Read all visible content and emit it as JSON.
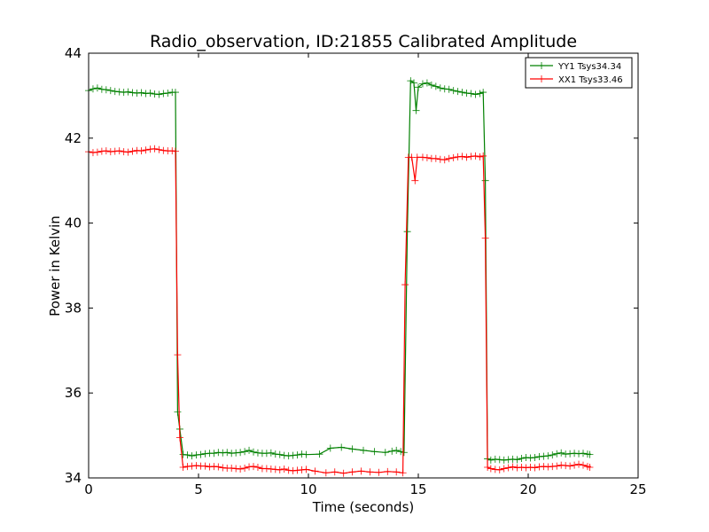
{
  "chart_data": {
    "type": "line",
    "title": "Radio_observation, ID:21855 Calibrated Amplitude",
    "xlabel": "Time (seconds)",
    "ylabel": "Power in Kelvin",
    "xlim": [
      0,
      25
    ],
    "ylim": [
      34,
      44
    ],
    "xticks": [
      0,
      5,
      10,
      15,
      20,
      25
    ],
    "yticks": [
      34,
      36,
      38,
      40,
      42,
      44
    ],
    "grid": false,
    "legend_position": "top-right",
    "series": [
      {
        "name": "YY1 Tsys34.34",
        "color": "#008000",
        "marker": "plus",
        "points": [
          [
            0.0,
            43.12
          ],
          [
            0.2,
            43.16
          ],
          [
            0.4,
            43.18
          ],
          [
            0.6,
            43.15
          ],
          [
            0.8,
            43.14
          ],
          [
            1.0,
            43.12
          ],
          [
            1.2,
            43.1
          ],
          [
            1.4,
            43.09
          ],
          [
            1.6,
            43.08
          ],
          [
            1.8,
            43.09
          ],
          [
            2.0,
            43.07
          ],
          [
            2.2,
            43.06
          ],
          [
            2.4,
            43.07
          ],
          [
            2.6,
            43.05
          ],
          [
            2.8,
            43.06
          ],
          [
            3.0,
            43.04
          ],
          [
            3.2,
            43.03
          ],
          [
            3.4,
            43.05
          ],
          [
            3.6,
            43.06
          ],
          [
            3.8,
            43.08
          ],
          [
            3.95,
            43.08
          ],
          [
            4.05,
            35.55
          ],
          [
            4.15,
            35.15
          ],
          [
            4.3,
            34.55
          ],
          [
            4.5,
            34.54
          ],
          [
            4.7,
            34.52
          ],
          [
            4.9,
            34.54
          ],
          [
            5.1,
            34.55
          ],
          [
            5.3,
            34.57
          ],
          [
            5.5,
            34.58
          ],
          [
            5.7,
            34.58
          ],
          [
            5.9,
            34.6
          ],
          [
            6.1,
            34.59
          ],
          [
            6.3,
            34.6
          ],
          [
            6.5,
            34.58
          ],
          [
            6.7,
            34.59
          ],
          [
            6.9,
            34.6
          ],
          [
            7.1,
            34.62
          ],
          [
            7.3,
            34.65
          ],
          [
            7.5,
            34.61
          ],
          [
            7.7,
            34.59
          ],
          [
            7.9,
            34.58
          ],
          [
            8.1,
            34.58
          ],
          [
            8.3,
            34.59
          ],
          [
            8.5,
            34.56
          ],
          [
            8.7,
            34.55
          ],
          [
            8.9,
            34.53
          ],
          [
            9.1,
            34.52
          ],
          [
            9.3,
            34.53
          ],
          [
            9.5,
            34.54
          ],
          [
            9.7,
            34.56
          ],
          [
            9.9,
            34.55
          ],
          [
            10.5,
            34.56
          ],
          [
            11.0,
            34.7
          ],
          [
            11.5,
            34.72
          ],
          [
            12.0,
            34.68
          ],
          [
            12.5,
            34.65
          ],
          [
            13.0,
            34.62
          ],
          [
            13.5,
            34.6
          ],
          [
            13.8,
            34.63
          ],
          [
            14.0,
            34.65
          ],
          [
            14.2,
            34.62
          ],
          [
            14.35,
            34.6
          ],
          [
            14.5,
            39.8
          ],
          [
            14.65,
            43.35
          ],
          [
            14.8,
            43.3
          ],
          [
            14.9,
            42.65
          ],
          [
            15.0,
            43.2
          ],
          [
            15.2,
            43.28
          ],
          [
            15.4,
            43.3
          ],
          [
            15.6,
            43.25
          ],
          [
            15.8,
            43.22
          ],
          [
            16.0,
            43.18
          ],
          [
            16.2,
            43.16
          ],
          [
            16.4,
            43.15
          ],
          [
            16.6,
            43.12
          ],
          [
            16.8,
            43.1
          ],
          [
            17.0,
            43.08
          ],
          [
            17.2,
            43.06
          ],
          [
            17.4,
            43.05
          ],
          [
            17.6,
            43.03
          ],
          [
            17.8,
            43.05
          ],
          [
            17.95,
            43.08
          ],
          [
            18.05,
            41.0
          ],
          [
            18.15,
            34.45
          ],
          [
            18.3,
            34.42
          ],
          [
            18.5,
            34.44
          ],
          [
            18.7,
            34.43
          ],
          [
            18.9,
            34.42
          ],
          [
            19.1,
            34.43
          ],
          [
            19.3,
            34.44
          ],
          [
            19.5,
            34.43
          ],
          [
            19.7,
            34.46
          ],
          [
            19.9,
            34.48
          ],
          [
            20.1,
            34.47
          ],
          [
            20.3,
            34.48
          ],
          [
            20.5,
            34.5
          ],
          [
            20.7,
            34.51
          ],
          [
            20.9,
            34.52
          ],
          [
            21.1,
            34.54
          ],
          [
            21.3,
            34.57
          ],
          [
            21.5,
            34.59
          ],
          [
            21.7,
            34.56
          ],
          [
            21.9,
            34.57
          ],
          [
            22.1,
            34.58
          ],
          [
            22.3,
            34.57
          ],
          [
            22.5,
            34.58
          ],
          [
            22.7,
            34.56
          ],
          [
            22.8,
            34.55
          ]
        ]
      },
      {
        "name": "XX1 Tsys33.46",
        "color": "#ff0000",
        "marker": "plus",
        "points": [
          [
            0.0,
            41.68
          ],
          [
            0.2,
            41.66
          ],
          [
            0.4,
            41.67
          ],
          [
            0.6,
            41.69
          ],
          [
            0.8,
            41.7
          ],
          [
            1.0,
            41.68
          ],
          [
            1.2,
            41.69
          ],
          [
            1.4,
            41.7
          ],
          [
            1.6,
            41.68
          ],
          [
            1.8,
            41.67
          ],
          [
            2.0,
            41.69
          ],
          [
            2.2,
            41.71
          ],
          [
            2.4,
            41.7
          ],
          [
            2.6,
            41.72
          ],
          [
            2.8,
            41.74
          ],
          [
            3.0,
            41.75
          ],
          [
            3.2,
            41.73
          ],
          [
            3.4,
            41.71
          ],
          [
            3.6,
            41.7
          ],
          [
            3.8,
            41.7
          ],
          [
            3.95,
            41.69
          ],
          [
            4.05,
            36.9
          ],
          [
            4.15,
            34.95
          ],
          [
            4.3,
            34.25
          ],
          [
            4.5,
            34.27
          ],
          [
            4.7,
            34.28
          ],
          [
            4.9,
            34.29
          ],
          [
            5.1,
            34.28
          ],
          [
            5.3,
            34.28
          ],
          [
            5.5,
            34.26
          ],
          [
            5.7,
            34.27
          ],
          [
            5.9,
            34.26
          ],
          [
            6.1,
            34.24
          ],
          [
            6.3,
            34.23
          ],
          [
            6.5,
            34.23
          ],
          [
            6.7,
            34.22
          ],
          [
            6.9,
            34.21
          ],
          [
            7.1,
            34.23
          ],
          [
            7.3,
            34.26
          ],
          [
            7.5,
            34.27
          ],
          [
            7.7,
            34.25
          ],
          [
            7.9,
            34.22
          ],
          [
            8.1,
            34.22
          ],
          [
            8.3,
            34.21
          ],
          [
            8.5,
            34.2
          ],
          [
            8.7,
            34.19
          ],
          [
            8.9,
            34.21
          ],
          [
            9.1,
            34.18
          ],
          [
            9.3,
            34.17
          ],
          [
            9.5,
            34.18
          ],
          [
            9.7,
            34.19
          ],
          [
            9.9,
            34.2
          ],
          [
            10.3,
            34.16
          ],
          [
            10.8,
            34.12
          ],
          [
            11.2,
            34.14
          ],
          [
            11.6,
            34.11
          ],
          [
            12.0,
            34.14
          ],
          [
            12.4,
            34.16
          ],
          [
            12.8,
            34.14
          ],
          [
            13.2,
            34.13
          ],
          [
            13.6,
            34.15
          ],
          [
            14.0,
            34.14
          ],
          [
            14.3,
            34.12
          ],
          [
            14.4,
            38.55
          ],
          [
            14.55,
            41.55
          ],
          [
            14.7,
            41.55
          ],
          [
            14.85,
            41.0
          ],
          [
            14.95,
            41.55
          ],
          [
            15.2,
            41.55
          ],
          [
            15.4,
            41.54
          ],
          [
            15.6,
            41.52
          ],
          [
            15.8,
            41.52
          ],
          [
            16.0,
            41.5
          ],
          [
            16.2,
            41.49
          ],
          [
            16.4,
            41.52
          ],
          [
            16.6,
            41.54
          ],
          [
            16.8,
            41.56
          ],
          [
            17.0,
            41.57
          ],
          [
            17.2,
            41.55
          ],
          [
            17.4,
            41.57
          ],
          [
            17.6,
            41.58
          ],
          [
            17.8,
            41.56
          ],
          [
            17.95,
            41.58
          ],
          [
            18.05,
            39.65
          ],
          [
            18.15,
            34.25
          ],
          [
            18.3,
            34.22
          ],
          [
            18.5,
            34.2
          ],
          [
            18.7,
            34.19
          ],
          [
            18.9,
            34.22
          ],
          [
            19.1,
            34.24
          ],
          [
            19.3,
            34.26
          ],
          [
            19.5,
            34.24
          ],
          [
            19.7,
            34.25
          ],
          [
            19.9,
            34.24
          ],
          [
            20.1,
            34.25
          ],
          [
            20.3,
            34.24
          ],
          [
            20.5,
            34.26
          ],
          [
            20.7,
            34.27
          ],
          [
            20.9,
            34.26
          ],
          [
            21.1,
            34.27
          ],
          [
            21.3,
            34.28
          ],
          [
            21.5,
            34.3
          ],
          [
            21.7,
            34.29
          ],
          [
            21.9,
            34.28
          ],
          [
            22.1,
            34.3
          ],
          [
            22.3,
            34.32
          ],
          [
            22.5,
            34.3
          ],
          [
            22.7,
            34.27
          ],
          [
            22.8,
            34.25
          ]
        ]
      }
    ]
  }
}
